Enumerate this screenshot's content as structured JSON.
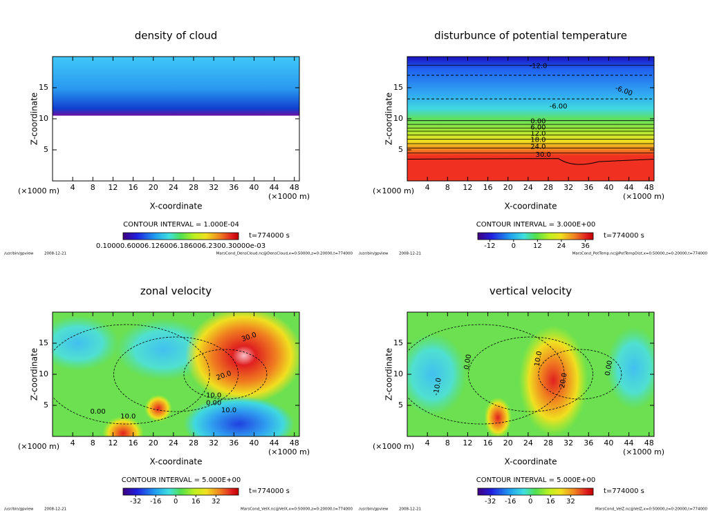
{
  "chart_data": [
    {
      "type": "contour",
      "title": "density of cloud",
      "xlabel": "X-coordinate",
      "ylabel": "Z-coordinate",
      "x_unit": "(×1000 m)",
      "xlim": [
        0,
        49
      ],
      "ylim": [
        0,
        20
      ],
      "xticks": [
        4,
        8,
        12,
        16,
        20,
        24,
        28,
        32,
        36,
        40,
        44,
        48
      ],
      "yticks": [
        5,
        10,
        15
      ],
      "contour_interval": "CONTOUR INTERVAL = 1.000E-04",
      "time": "t=774000 s",
      "colorbar": {
        "label_text": "0.10000.60006.126006.186006.2300.30000e-03"
      },
      "footer_program": "/usr/bin/gpview",
      "footer_date": "2008-12-21",
      "footer_source": "MarsCond_DensCloud.nc@DensCloud,x=0:50000,z=0:20000,t=774000",
      "annotations": []
    },
    {
      "type": "contour",
      "title": "disturbunce of potential temperature",
      "xlabel": "X-coordinate",
      "ylabel": "Z-coordinate",
      "x_unit": "(×1000 m)",
      "xlim": [
        0,
        49
      ],
      "ylim": [
        0,
        20
      ],
      "xticks": [
        4,
        8,
        12,
        16,
        20,
        24,
        28,
        32,
        36,
        40,
        44,
        48
      ],
      "yticks": [
        5,
        10,
        15
      ],
      "contour_interval": "CONTOUR INTERVAL = 3.000E+00",
      "time": "t=774000 s",
      "colorbar": {
        "clim": [
          -18,
          40
        ],
        "ticks": [
          -12,
          0,
          12,
          24,
          36
        ]
      },
      "footer_program": "/usr/bin/gpview",
      "footer_date": "2008-12-21",
      "footer_source": "MarsCond_PotTemp.nc@PotTempDist,x=0:50000,z=0:20000,t=774000",
      "annotations": [
        "-12.0",
        "-6.00",
        "-6.00",
        "0.00",
        "6.00",
        "12.0",
        "18.0",
        "24.0",
        "30.0"
      ]
    },
    {
      "type": "contour",
      "title": "zonal velocity",
      "xlabel": "X-coordinate",
      "ylabel": "Z-coordinate",
      "x_unit": "(×1000 m)",
      "xlim": [
        0,
        49
      ],
      "ylim": [
        0,
        20
      ],
      "xticks": [
        4,
        8,
        12,
        16,
        20,
        24,
        28,
        32,
        36,
        40,
        44,
        48
      ],
      "yticks": [
        5,
        10,
        15
      ],
      "contour_interval": "CONTOUR INTERVAL = 5.000E+00",
      "time": "t=774000 s",
      "colorbar": {
        "clim": [
          -42,
          50
        ],
        "ticks": [
          -32,
          -16,
          0,
          16,
          32
        ]
      },
      "footer_program": "/usr/bin/gpview",
      "footer_date": "2008-12-21",
      "footer_source": "MarsCond_VelX.nc@VelX,x=0:50000,z=0:20000,t=774000",
      "annotations": [
        "30.0",
        "20.0",
        "10.0",
        "0.00",
        "0.00",
        "10.0",
        "10.0"
      ]
    },
    {
      "type": "contour",
      "title": "vertical velocity",
      "xlabel": "X-coordinate",
      "ylabel": "Z-coordinate",
      "x_unit": "(×1000 m)",
      "xlim": [
        0,
        49
      ],
      "ylim": [
        0,
        20
      ],
      "xticks": [
        4,
        8,
        12,
        16,
        20,
        24,
        28,
        32,
        36,
        40,
        44,
        48
      ],
      "yticks": [
        5,
        10,
        15
      ],
      "contour_interval": "CONTOUR INTERVAL = 5.000E+00",
      "time": "t=774000 s",
      "colorbar": {
        "clim": [
          -42,
          50
        ],
        "ticks": [
          -32,
          -16,
          0,
          16,
          32
        ]
      },
      "footer_program": "/usr/bin/gpview",
      "footer_date": "2008-12-21",
      "footer_source": "MarsCond_VelZ.nc@VelZ,x=0:50000,z=0:20000,t=774000",
      "annotations": [
        "0.00",
        "10.0",
        "-10.0",
        "20.0",
        "0.00"
      ]
    }
  ]
}
